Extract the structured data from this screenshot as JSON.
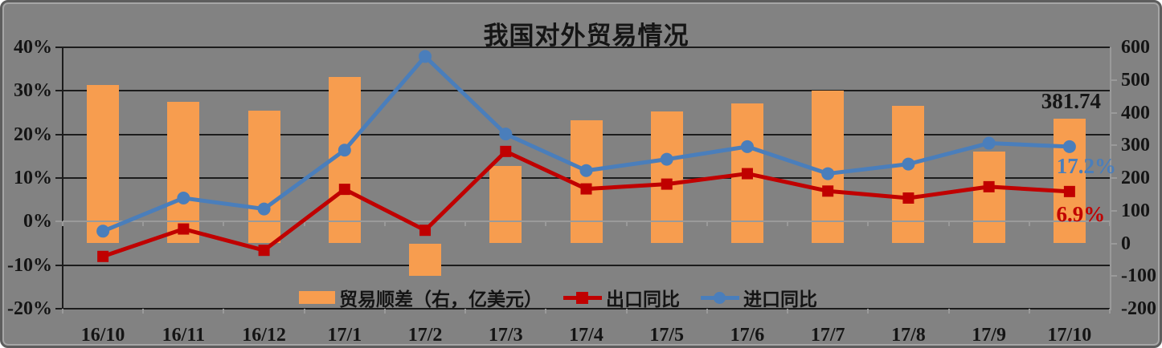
{
  "title": "我国对外贸易情况",
  "colors": {
    "background": "#828282",
    "panel_border": "#5d5d5d",
    "gridline": "#1c1c1c",
    "axis_light": "#9a9a9a",
    "bar": "#F79D4F",
    "export_line": "#C00000",
    "import_line": "#4A7EBB",
    "text": "#141414"
  },
  "chart_data": {
    "type": "bar+line combo",
    "title": "我国对外贸易情况",
    "categories": [
      "16/10",
      "16/11",
      "16/12",
      "17/1",
      "17/2",
      "17/3",
      "17/4",
      "17/5",
      "17/6",
      "17/7",
      "17/8",
      "17/9",
      "17/10"
    ],
    "series": [
      {
        "name": "贸易顺差（右，亿美元）",
        "type": "bar",
        "axis": "right",
        "color": "#F79D4F",
        "values": [
          484,
          433,
          405,
          509,
          -99,
          236,
          377,
          404,
          428,
          467,
          420,
          281,
          381.74
        ]
      },
      {
        "name": "出口同比",
        "type": "line",
        "axis": "left",
        "marker": "square",
        "color": "#C00000",
        "values": [
          -8.0,
          -1.7,
          -6.6,
          7.4,
          -2.0,
          16.1,
          7.5,
          8.6,
          11.0,
          7.0,
          5.4,
          8.0,
          6.9
        ]
      },
      {
        "name": "进口同比",
        "type": "line",
        "axis": "left",
        "marker": "circle",
        "color": "#4A7EBB",
        "values": [
          -2.2,
          5.4,
          2.9,
          16.4,
          37.9,
          20.1,
          11.7,
          14.3,
          17.2,
          11.0,
          13.2,
          18.0,
          17.2
        ]
      }
    ],
    "left_axis": {
      "ticks": [
        "40%",
        "30%",
        "20%",
        "10%",
        "0%",
        "-10%",
        "-20%"
      ],
      "values": [
        40,
        30,
        20,
        10,
        0,
        -10,
        -20
      ],
      "range": [
        -20,
        40
      ]
    },
    "right_axis": {
      "ticks": [
        "600",
        "500",
        "400",
        "300",
        "200",
        "100",
        "0",
        "-100",
        "-200"
      ],
      "values": [
        600,
        500,
        400,
        300,
        200,
        100,
        0,
        -100,
        -200
      ],
      "range": [
        -200,
        600
      ]
    },
    "annotations": [
      {
        "text": "381.74",
        "color": "#151515",
        "anchor": "surplus-last"
      },
      {
        "text": "17.2%",
        "color": "#4A7EBB",
        "anchor": "import-last"
      },
      {
        "text": "6.9%",
        "color": "#C00000",
        "anchor": "export-last"
      }
    ],
    "legend": {
      "position": "bottom",
      "items": [
        "贸易顺差（右，亿美元）",
        "出口同比",
        "进口同比"
      ]
    },
    "grid": "horizontal-only"
  }
}
